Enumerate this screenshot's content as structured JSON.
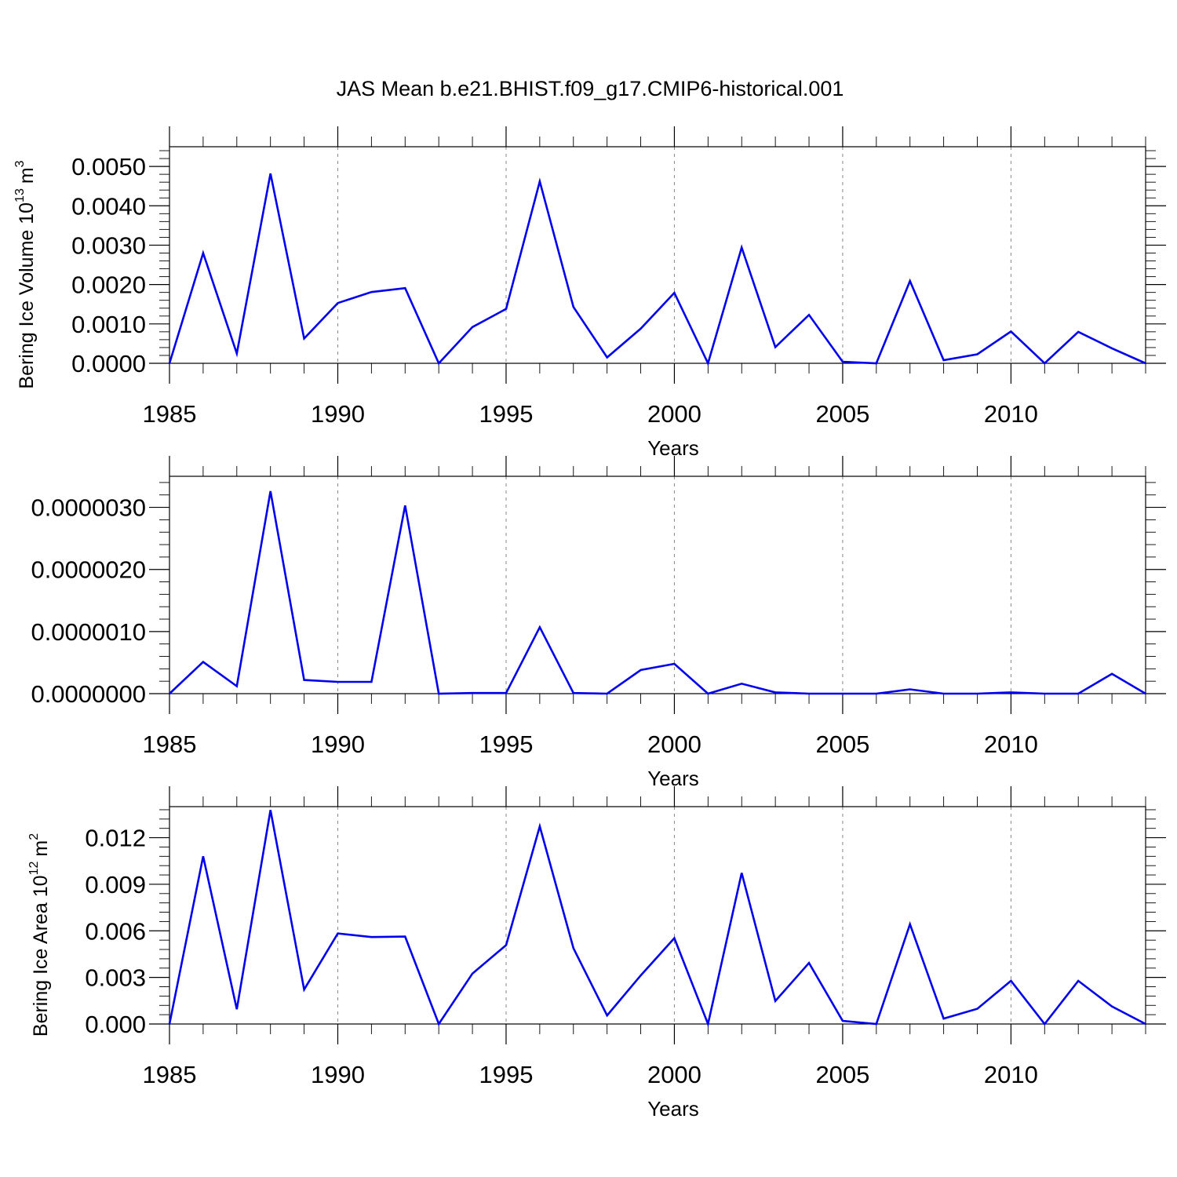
{
  "title": "JAS Mean b.e21.BHIST.f09_g17.CMIP6-historical.001",
  "chart_data": [
    {
      "type": "line",
      "xlabel": "Years",
      "ylabel": "Bering Ice Volume 10",
      "ylabel_exp": "13",
      "ylabel_unit": "m",
      "ylabel_unit_exp": "3",
      "xlim": [
        1985,
        2014
      ],
      "ylim": [
        0,
        0.0055
      ],
      "x_ticks": [
        1985,
        1990,
        1995,
        2000,
        2005,
        2010
      ],
      "x_tick_labels": [
        "1985",
        "1990",
        "1995",
        "2000",
        "2005",
        "2010"
      ],
      "y_ticks": [
        0,
        0.001,
        0.002,
        0.003,
        0.004,
        0.005
      ],
      "y_tick_labels": [
        "0.0000",
        "0.0010",
        "0.0020",
        "0.0030",
        "0.0040",
        "0.0050"
      ],
      "grid": "vertical dashed at labeled years",
      "color": "#0000ee",
      "x": [
        1985,
        1986,
        1987,
        1988,
        1989,
        1990,
        1991,
        1992,
        1993,
        1994,
        1995,
        1996,
        1997,
        1998,
        1999,
        2000,
        2001,
        2002,
        2003,
        2004,
        2005,
        2006,
        2007,
        2008,
        2009,
        2010,
        2011,
        2012,
        2013,
        2014
      ],
      "y": [
        0.0,
        0.0028,
        0.00025,
        0.00482,
        0.00063,
        0.00153,
        0.00181,
        0.00191,
        0.0,
        0.00092,
        0.00138,
        0.00462,
        0.00143,
        0.00015,
        0.00088,
        0.00179,
        0.0,
        0.00294,
        0.00041,
        0.00123,
        4e-05,
        0.0,
        0.00209,
        8e-05,
        0.00023,
        0.00081,
        0.0,
        0.0008,
        0.00038,
        0.0
      ]
    },
    {
      "type": "line",
      "xlabel": "Years",
      "ylabel": "",
      "xlim": [
        1985,
        2014
      ],
      "ylim": [
        0,
        3.5e-06
      ],
      "x_ticks": [
        1985,
        1990,
        1995,
        2000,
        2005,
        2010
      ],
      "x_tick_labels": [
        "1985",
        "1990",
        "1995",
        "2000",
        "2005",
        "2010"
      ],
      "y_ticks": [
        0,
        1e-06,
        2e-06,
        3e-06
      ],
      "y_tick_labels": [
        "0.0000000",
        "0.0000010",
        "0.0000020",
        "0.0000030"
      ],
      "grid": "vertical dashed at labeled years",
      "color": "#0000ee",
      "x": [
        1985,
        1986,
        1987,
        1988,
        1989,
        1990,
        1991,
        1992,
        1993,
        1994,
        1995,
        1996,
        1997,
        1998,
        1999,
        2000,
        2001,
        2002,
        2003,
        2004,
        2005,
        2006,
        2007,
        2008,
        2009,
        2010,
        2011,
        2012,
        2013,
        2014
      ],
      "y": [
        0.0,
        5.1e-07,
        1.2e-07,
        3.26e-06,
        2.2e-07,
        1.9e-07,
        1.9e-07,
        3.03e-06,
        0.0,
        1e-08,
        1e-08,
        1.07e-06,
        1e-08,
        0.0,
        3.8e-07,
        4.8e-07,
        0.0,
        1.6e-07,
        2e-08,
        0.0,
        0.0,
        0.0,
        7e-08,
        0.0,
        0.0,
        2e-08,
        0.0,
        0.0,
        3.2e-07,
        0.0
      ]
    },
    {
      "type": "line",
      "xlabel": "Years",
      "ylabel": "Bering Ice Area 10",
      "ylabel_exp": "12",
      "ylabel_unit": "m",
      "ylabel_unit_exp": "2",
      "xlim": [
        1985,
        2014
      ],
      "ylim": [
        0,
        0.014
      ],
      "x_ticks": [
        1985,
        1990,
        1995,
        2000,
        2005,
        2010
      ],
      "x_tick_labels": [
        "1985",
        "1990",
        "1995",
        "2000",
        "2005",
        "2010"
      ],
      "y_ticks": [
        0,
        0.003,
        0.006,
        0.009,
        0.012
      ],
      "y_tick_labels": [
        "0.000",
        "0.003",
        "0.006",
        "0.009",
        "0.012"
      ],
      "grid": "vertical dashed at labeled years",
      "color": "#0000ee",
      "x": [
        1985,
        1986,
        1987,
        1988,
        1989,
        1990,
        1991,
        1992,
        1993,
        1994,
        1995,
        1996,
        1997,
        1998,
        1999,
        2000,
        2001,
        2002,
        2003,
        2004,
        2005,
        2006,
        2007,
        2008,
        2009,
        2010,
        2011,
        2012,
        2013,
        2014
      ],
      "y": [
        0.0,
        0.0108,
        0.00095,
        0.01378,
        0.00222,
        0.00583,
        0.0056,
        0.00563,
        0.0,
        0.00325,
        0.00508,
        0.01273,
        0.00488,
        0.00055,
        0.00313,
        0.00553,
        0.0,
        0.00973,
        0.00148,
        0.00393,
        0.0002,
        0.0,
        0.00643,
        0.00035,
        0.00098,
        0.00278,
        0.0,
        0.00278,
        0.00113,
        0.0
      ]
    }
  ]
}
